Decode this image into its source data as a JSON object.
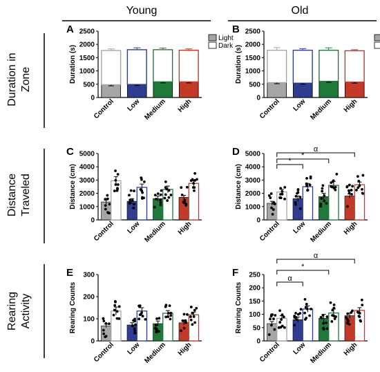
{
  "columns": [
    "Young",
    "Old"
  ],
  "rows": [
    {
      "line1": "Duration in",
      "line2": "Zone"
    },
    {
      "line1": "Distance",
      "line2": "Traveled"
    },
    {
      "line1": "Rearing",
      "line2": "Activity"
    }
  ],
  "legend": {
    "light": "Light",
    "dark": "Dark"
  },
  "colors": {
    "control": "#a6a6a6",
    "low": "#2e3d8f",
    "medium": "#1f7a3a",
    "high": "#c43a28",
    "axis": "#000000"
  },
  "chart_data": [
    {
      "panel": "A",
      "group": "Young",
      "type": "bar",
      "stacked": true,
      "categories": [
        "Control",
        "Low",
        "Medium",
        "High"
      ],
      "series": [
        {
          "name": "Light",
          "values": [
            480,
            490,
            590,
            590
          ]
        },
        {
          "name": "Dark",
          "values": [
            1290,
            1310,
            1210,
            1190
          ]
        }
      ],
      "errors": [
        60,
        70,
        60,
        50
      ],
      "ylabel": "Duration (s)",
      "ylim": [
        0,
        2500
      ],
      "yticks": [
        0,
        500,
        1000,
        1500,
        2000,
        2500
      ],
      "legend": "top-right"
    },
    {
      "panel": "B",
      "group": "Old",
      "type": "bar",
      "stacked": true,
      "categories": [
        "Control",
        "Low",
        "Medium",
        "High"
      ],
      "series": [
        {
          "name": "Light",
          "values": [
            560,
            540,
            610,
            580
          ]
        },
        {
          "name": "Dark",
          "values": [
            1220,
            1240,
            1170,
            1180
          ]
        }
      ],
      "errors": [
        100,
        60,
        90,
        40
      ],
      "ylabel": "Duration (s)",
      "ylim": [
        0,
        2500
      ],
      "yticks": [
        0,
        500,
        1000,
        1500,
        2000,
        2500
      ],
      "legend": "top-right"
    },
    {
      "panel": "C",
      "group": "Young",
      "type": "bar",
      "categories": [
        "Control",
        "Low",
        "Medium",
        "High"
      ],
      "series": [
        {
          "name": "Light",
          "values": [
            1350,
            1400,
            1600,
            1700
          ]
        },
        {
          "name": "Dark",
          "values": [
            2950,
            2450,
            2300,
            2750
          ]
        }
      ],
      "errors": [
        [
          150,
          300
        ],
        [
          200,
          250
        ],
        [
          200,
          250
        ],
        [
          150,
          200
        ]
      ],
      "ylabel": "Distance (cm)",
      "ylim": [
        0,
        5000
      ],
      "yticks": [
        0,
        1000,
        2000,
        3000,
        4000,
        5000
      ]
    },
    {
      "panel": "D",
      "group": "Old",
      "type": "bar",
      "categories": [
        "Control",
        "Low",
        "Medium",
        "High"
      ],
      "series": [
        {
          "name": "Light",
          "values": [
            1250,
            1600,
            1750,
            1800
          ]
        },
        {
          "name": "Dark",
          "values": [
            2100,
            2500,
            2600,
            2650
          ]
        }
      ],
      "errors": [
        [
          150,
          200
        ],
        [
          200,
          250
        ],
        [
          250,
          300
        ],
        [
          150,
          200
        ]
      ],
      "ylabel": "Distance (cm)",
      "ylim": [
        0,
        5000
      ],
      "yticks": [
        0,
        1000,
        2000,
        3000,
        4000,
        5000
      ],
      "annotations": [
        "*",
        "*",
        "α"
      ]
    },
    {
      "panel": "E",
      "group": "Young",
      "type": "bar",
      "categories": [
        "Control",
        "Low",
        "Medium",
        "High"
      ],
      "series": [
        {
          "name": "Light",
          "values": [
            68,
            72,
            78,
            82
          ]
        },
        {
          "name": "Dark",
          "values": [
            135,
            135,
            125,
            118
          ]
        }
      ],
      "errors": [
        [
          8,
          18
        ],
        [
          10,
          15
        ],
        [
          12,
          12
        ],
        [
          10,
          12
        ]
      ],
      "ylabel": "Rearing Counts",
      "ylim": [
        0,
        300
      ],
      "yticks": [
        0,
        100,
        200,
        300
      ]
    },
    {
      "panel": "F",
      "group": "Old",
      "type": "bar",
      "categories": [
        "Control",
        "Low",
        "Medium",
        "High"
      ],
      "series": [
        {
          "name": "Light",
          "values": [
            65,
            80,
            85,
            95
          ]
        },
        {
          "name": "Dark",
          "values": [
            85,
            120,
            105,
            115
          ]
        }
      ],
      "errors": [
        [
          8,
          10
        ],
        [
          10,
          12
        ],
        [
          15,
          15
        ],
        [
          10,
          10
        ]
      ],
      "ylabel": "Rearing Counts",
      "ylim": [
        0,
        250
      ],
      "yticks": [
        0,
        50,
        100,
        150,
        200,
        250
      ],
      "annotations": [
        "α",
        "*",
        "α"
      ]
    }
  ]
}
